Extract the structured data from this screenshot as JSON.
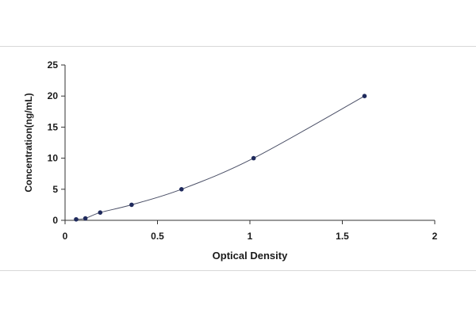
{
  "chart_data": {
    "type": "scatter",
    "title": "",
    "xlabel": "Optical Density",
    "ylabel": "Concentration(ng/mL)",
    "xlim": [
      0,
      2
    ],
    "ylim": [
      0,
      25
    ],
    "x_ticks": [
      "0",
      "0.5",
      "1",
      "1.5",
      "2"
    ],
    "y_ticks": [
      "0",
      "5",
      "10",
      "15",
      "20",
      "25"
    ],
    "grid": false,
    "legend": "none",
    "fit_line": true,
    "series": [
      {
        "x": [
          0.06,
          0.11,
          0.19,
          0.36,
          0.63,
          1.02,
          1.62
        ],
        "y": [
          0.156,
          0.312,
          1.25,
          2.5,
          5,
          10,
          20
        ]
      }
    ],
    "colors": {
      "point": "#1f2a5c",
      "curve": "#4a4f66",
      "axis": "#333333",
      "text": "#1a1a1a"
    }
  }
}
